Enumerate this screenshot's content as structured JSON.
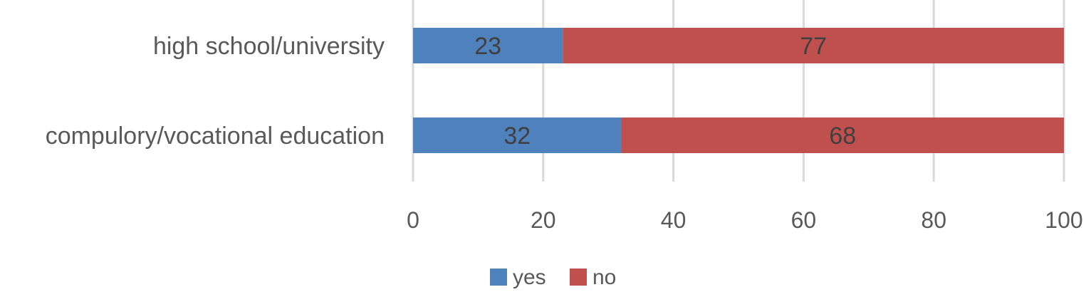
{
  "chart_data": {
    "type": "bar",
    "orientation": "horizontal",
    "stacked": true,
    "categories": [
      "high school/university",
      "compulory/vocational education"
    ],
    "series": [
      {
        "name": "yes",
        "values": [
          23,
          32
        ],
        "color": "#4f81bd"
      },
      {
        "name": "no",
        "values": [
          77,
          68
        ],
        "color": "#c0504d"
      }
    ],
    "xlim": [
      0,
      100
    ],
    "xticks": [
      0,
      20,
      40,
      60,
      80,
      100
    ],
    "grid": true,
    "legend": "bottom",
    "data_labels": true
  }
}
